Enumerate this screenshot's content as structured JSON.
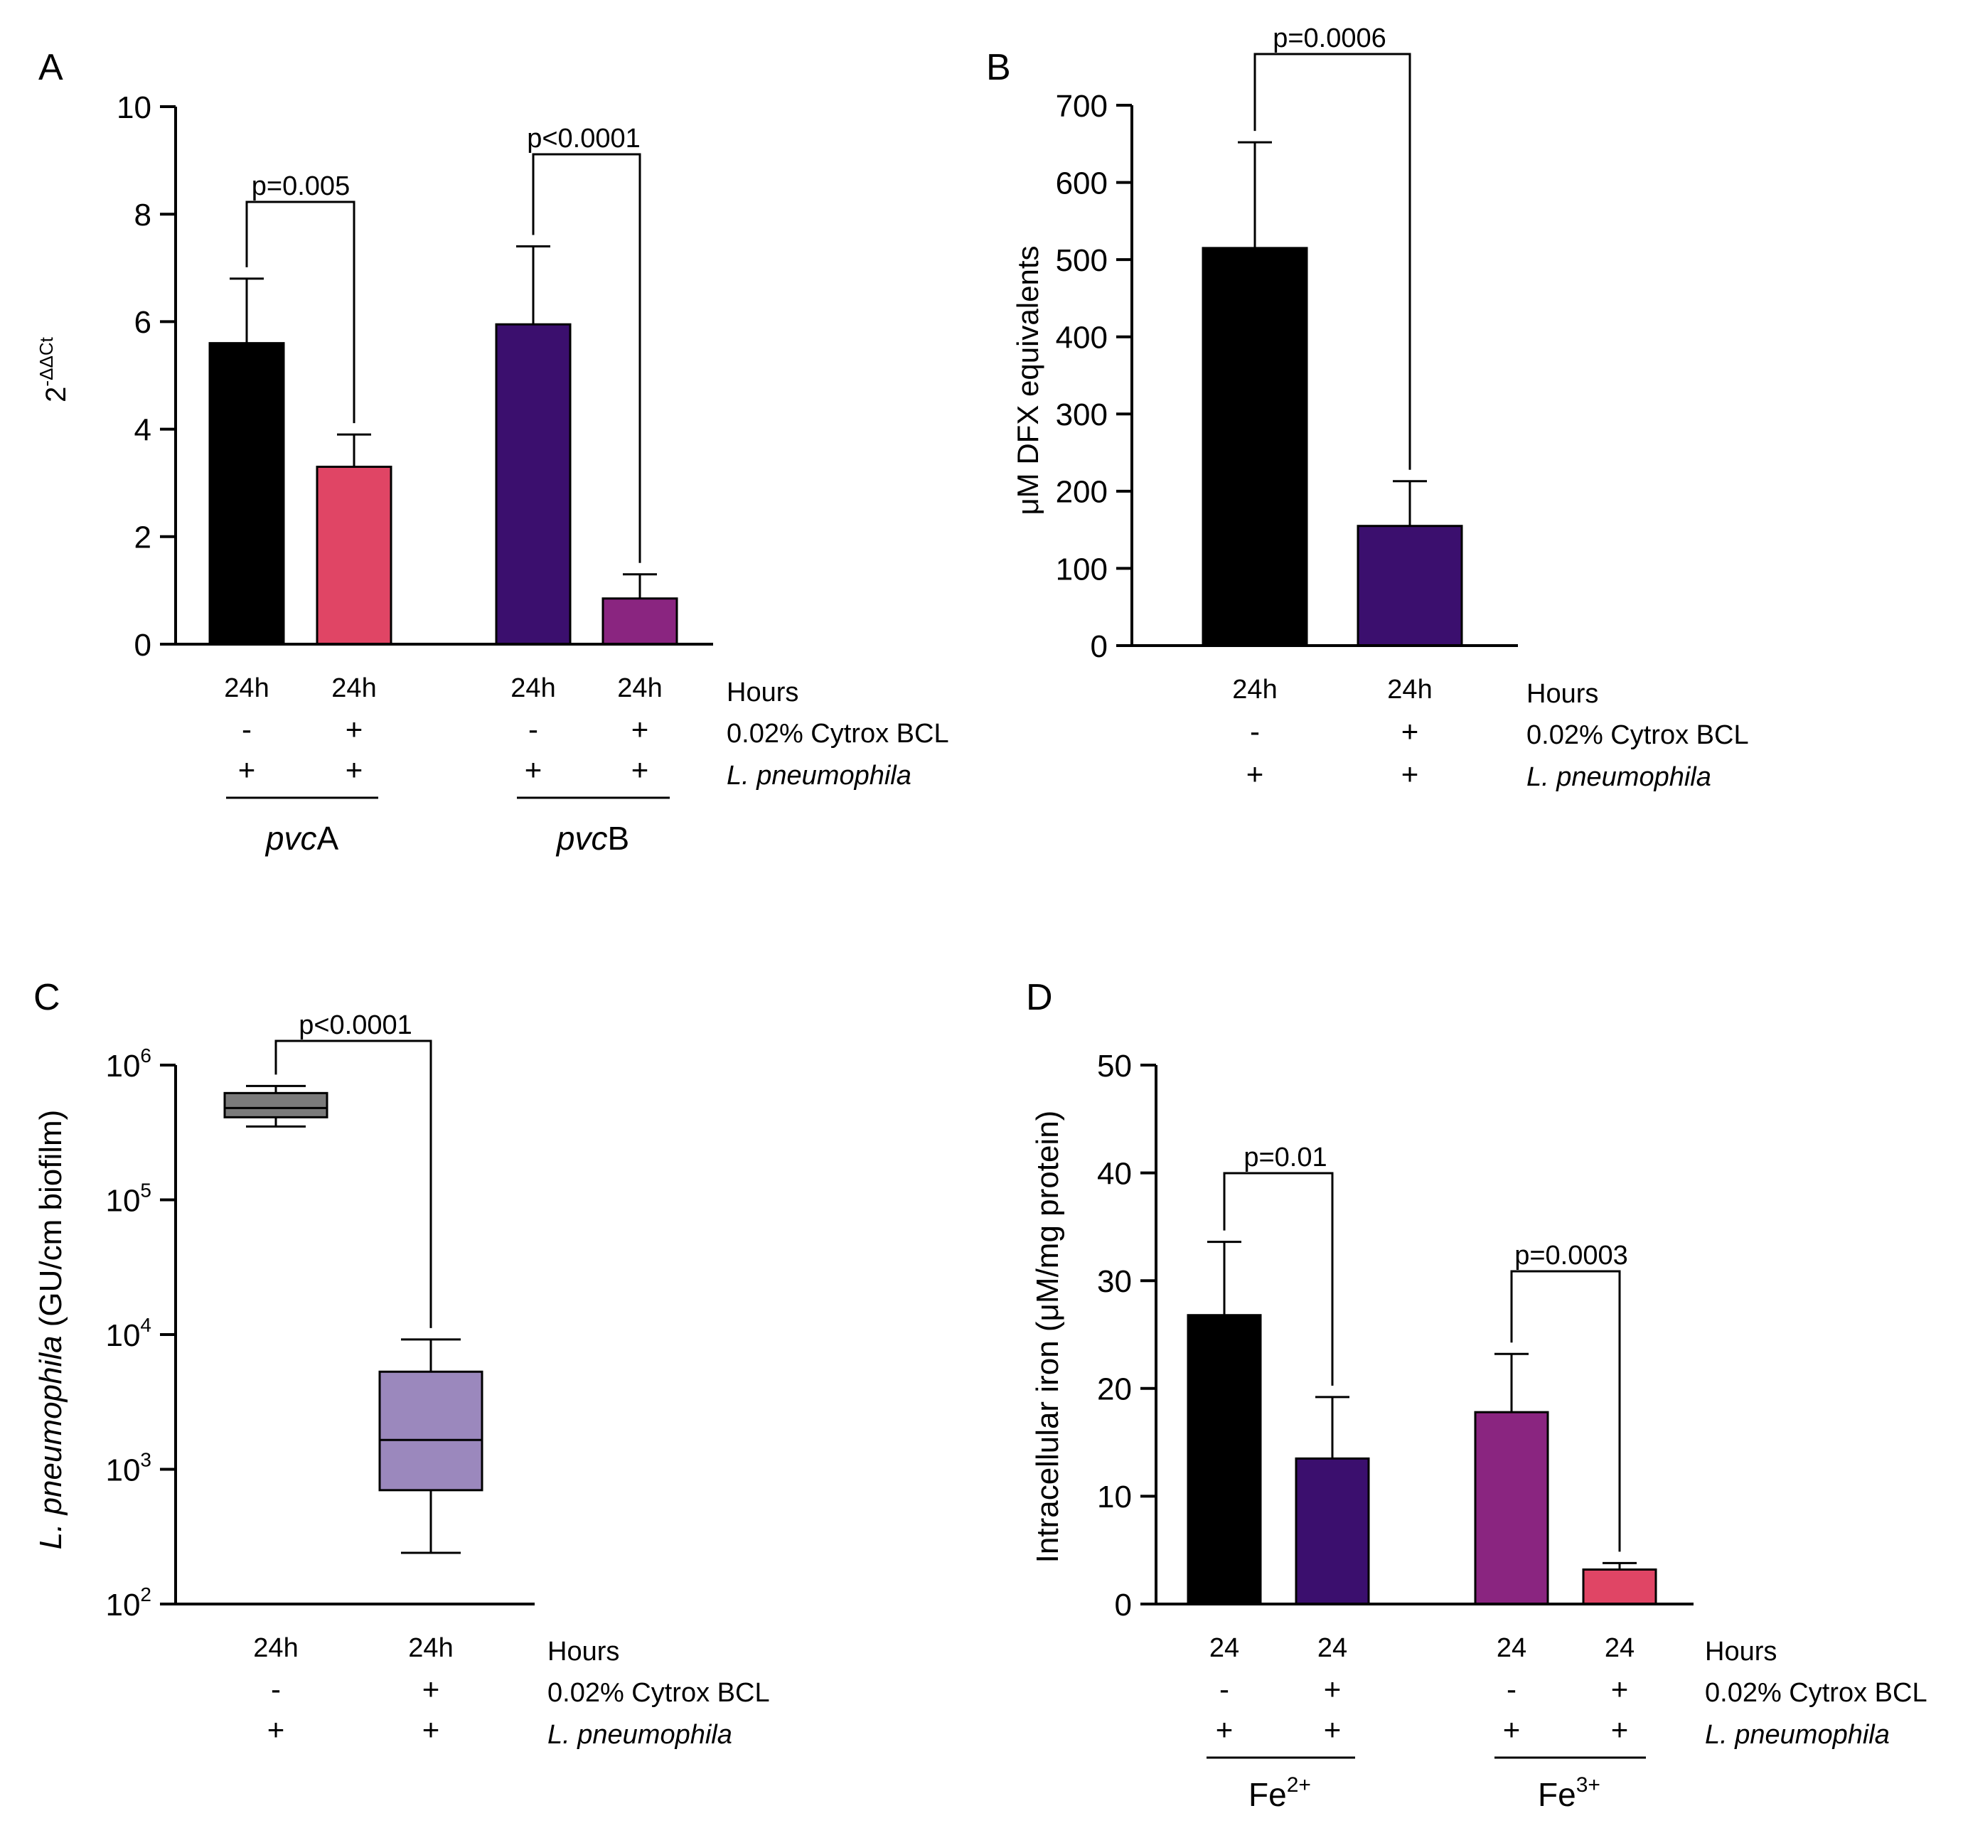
{
  "chart_data": [
    {
      "panel": "A",
      "type": "bar",
      "ylabel_base": "2",
      "ylabel_sup": "-ΔΔCt",
      "ylim": [
        0,
        10
      ],
      "yticks": [
        "0",
        "2",
        "4",
        "6",
        "8",
        "10"
      ],
      "bars": [
        {
          "value": 5.6,
          "error": 1.2,
          "color": "#000000",
          "time": "24h",
          "cytrox": "-",
          "lp": "+"
        },
        {
          "value": 3.3,
          "error": 0.6,
          "color": "#e04565",
          "time": "24h",
          "cytrox": "+",
          "lp": "+"
        },
        {
          "value": 5.95,
          "error": 1.45,
          "color": "#3b0f6e",
          "time": "24h",
          "cytrox": "-",
          "lp": "+"
        },
        {
          "value": 0.85,
          "error": 0.45,
          "color": "#8a2580",
          "time": "24h",
          "cytrox": "+",
          "lp": "+"
        }
      ],
      "groups": [
        {
          "label_italic": "pvc",
          "label_normal": "A"
        },
        {
          "label_italic": "pvc",
          "label_normal": "B"
        }
      ],
      "comparisons": [
        "p=0.005",
        "p<0.0001"
      ],
      "row_labels": {
        "hours": "Hours",
        "cytrox": "0.02% Cytrox BCL",
        "lp": "L. pneumophila"
      }
    },
    {
      "panel": "B",
      "type": "bar",
      "ylabel": "μM DFX equivalents",
      "ylim": [
        0,
        700
      ],
      "yticks": [
        "0",
        "100",
        "200",
        "300",
        "400",
        "500",
        "600",
        "700"
      ],
      "bars": [
        {
          "value": 515,
          "error": 137,
          "color": "#000000",
          "time": "24h",
          "cytrox": "-",
          "lp": "+"
        },
        {
          "value": 155,
          "error": 58,
          "color": "#3b0f6e",
          "time": "24h",
          "cytrox": "+",
          "lp": "+"
        }
      ],
      "comparisons": [
        "p=0.0006"
      ],
      "row_labels": {
        "hours": "Hours",
        "cytrox": "0.02% Cytrox BCL",
        "lp": "L. pneumophila"
      }
    },
    {
      "panel": "C",
      "type": "box",
      "ylabel_italic": "L. pneumophila",
      "ylabel_normal": " (GU/cm biofilm)",
      "yscale": "log",
      "ylim": [
        100,
        1000000
      ],
      "yticks": [
        {
          "base": "10",
          "exp": "2"
        },
        {
          "base": "10",
          "exp": "3"
        },
        {
          "base": "10",
          "exp": "4"
        },
        {
          "base": "10",
          "exp": "5"
        },
        {
          "base": "10",
          "exp": "6"
        }
      ],
      "boxes": [
        {
          "min": 350000,
          "q1": 410000,
          "median": 480000,
          "q3": 620000,
          "max": 700000,
          "color": "#7a7a7a",
          "time": "24h",
          "cytrox": "-",
          "lp": "+"
        },
        {
          "min": 240,
          "q1": 700,
          "median": 1650,
          "q3": 5300,
          "max": 9200,
          "color": "#9b88bd",
          "time": "24h",
          "cytrox": "+",
          "lp": "+"
        }
      ],
      "comparisons": [
        "p<0.0001"
      ],
      "row_labels": {
        "hours": "Hours",
        "cytrox": "0.02% Cytrox BCL",
        "lp": "L. pneumophila"
      }
    },
    {
      "panel": "D",
      "type": "bar",
      "ylabel": "Intracellular iron (μM/mg protein)",
      "ylim": [
        0,
        50
      ],
      "yticks": [
        "0",
        "10",
        "20",
        "30",
        "40",
        "50"
      ],
      "bars": [
        {
          "value": 26.8,
          "error": 6.8,
          "color": "#000000",
          "time": "24",
          "cytrox": "-",
          "lp": "+"
        },
        {
          "value": 13.5,
          "error": 5.7,
          "color": "#3b0f6e",
          "time": "24",
          "cytrox": "+",
          "lp": "+"
        },
        {
          "value": 17.8,
          "error": 5.4,
          "color": "#8a2580",
          "time": "24",
          "cytrox": "-",
          "lp": "+"
        },
        {
          "value": 3.2,
          "error": 0.6,
          "color": "#e04565",
          "time": "24",
          "cytrox": "+",
          "lp": "+"
        }
      ],
      "groups": [
        {
          "base": "Fe",
          "sup": "2+"
        },
        {
          "base": "Fe",
          "sup": "3+"
        }
      ],
      "comparisons": [
        "p=0.01",
        "p=0.0003"
      ],
      "row_labels": {
        "hours": "Hours",
        "cytrox": "0.02% Cytrox BCL",
        "lp": "L. pneumophila"
      }
    }
  ]
}
